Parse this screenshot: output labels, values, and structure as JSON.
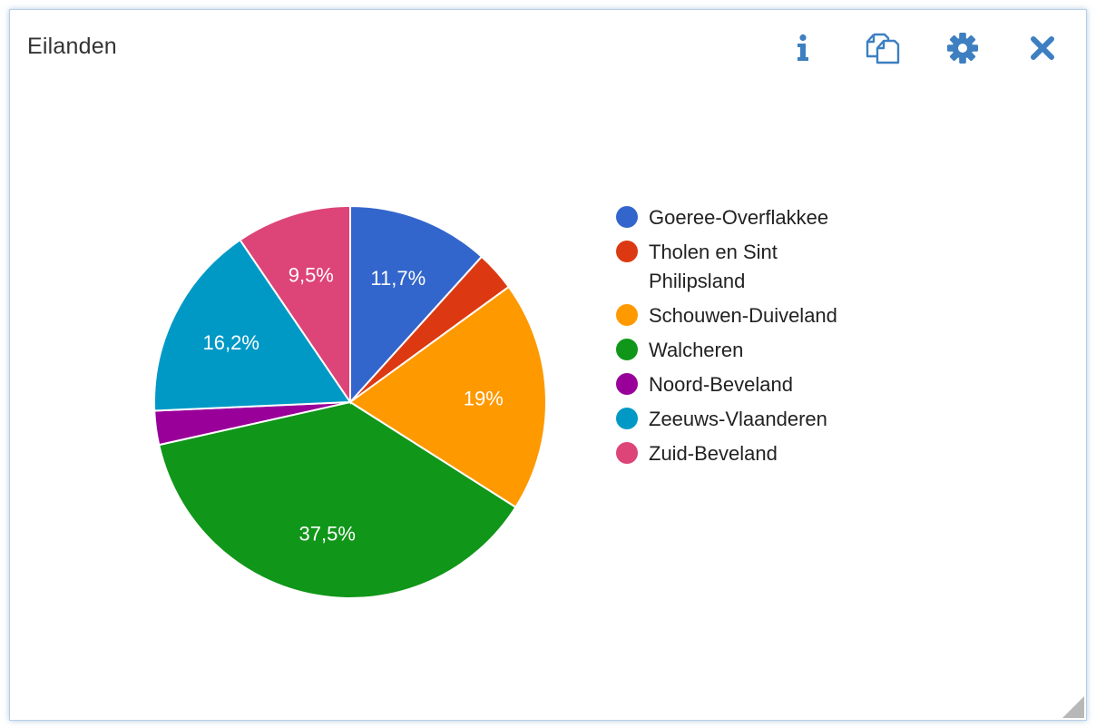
{
  "widget": {
    "title": "Eilanden"
  },
  "toolbar": {
    "info_icon": "info-icon",
    "copy_icon": "copy-icon",
    "settings_icon": "gear-icon",
    "close_icon": "close-icon",
    "icon_color": "#3d7fc1"
  },
  "chart_data": {
    "type": "pie",
    "legend_position": "right",
    "slices": [
      {
        "label": "Goeree-Overflakkee",
        "value": 11.7,
        "display": "11,7%",
        "color": "#3366cc"
      },
      {
        "label": "Tholen en Sint Philipsland",
        "value": 3.3,
        "display": "",
        "color": "#dc3912"
      },
      {
        "label": "Schouwen-Duiveland",
        "value": 19.0,
        "display": "19%",
        "color": "#ff9900"
      },
      {
        "label": "Walcheren",
        "value": 37.5,
        "display": "37,5%",
        "color": "#109618"
      },
      {
        "label": "Noord-Beveland",
        "value": 2.8,
        "display": "",
        "color": "#990099"
      },
      {
        "label": "Zeeuws-Vlaanderen",
        "value": 16.2,
        "display": "16,2%",
        "color": "#0099c6"
      },
      {
        "label": "Zuid-Beveland",
        "value": 9.5,
        "display": "9,5%",
        "color": "#dd4477"
      }
    ]
  }
}
